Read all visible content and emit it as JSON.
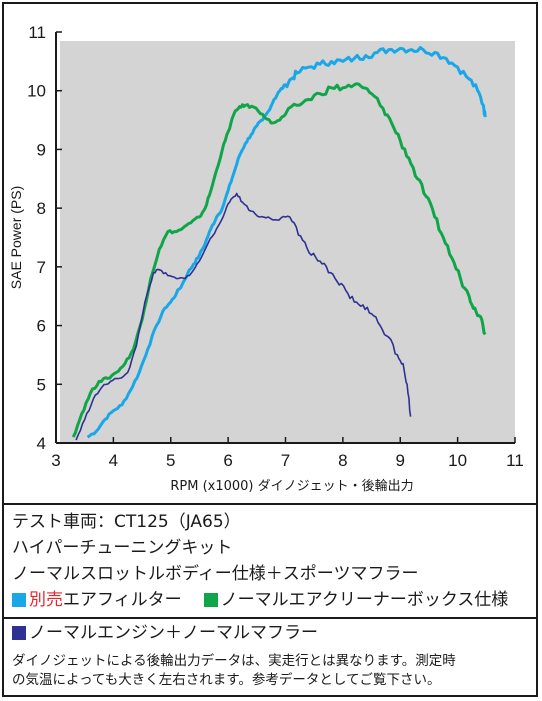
{
  "chart_data": {
    "type": "line",
    "ylabel": "SAE Power (PS)",
    "xlabel": "RPM (x1000) ダイノジェット・後輪出力",
    "xlim": [
      3,
      11
    ],
    "ylim": [
      4,
      11
    ],
    "xticks": [
      3,
      4,
      5,
      6,
      7,
      8,
      9,
      10,
      11
    ],
    "yticks": [
      4,
      5,
      6,
      7,
      8,
      9,
      10,
      11
    ],
    "grid": false,
    "series": [
      {
        "name": "別売エアフィルター",
        "color": "#1aa7e8",
        "points": [
          [
            3.55,
            4.1
          ],
          [
            3.7,
            4.2
          ],
          [
            3.85,
            4.4
          ],
          [
            4.0,
            4.55
          ],
          [
            4.15,
            4.65
          ],
          [
            4.3,
            4.9
          ],
          [
            4.45,
            5.2
          ],
          [
            4.6,
            5.6
          ],
          [
            4.75,
            6.0
          ],
          [
            4.9,
            6.3
          ],
          [
            5.0,
            6.4
          ],
          [
            5.1,
            6.55
          ],
          [
            5.2,
            6.7
          ],
          [
            5.3,
            6.9
          ],
          [
            5.4,
            7.05
          ],
          [
            5.5,
            7.2
          ],
          [
            5.6,
            7.4
          ],
          [
            5.7,
            7.65
          ],
          [
            5.8,
            7.85
          ],
          [
            5.9,
            8.0
          ],
          [
            6.0,
            8.3
          ],
          [
            6.1,
            8.6
          ],
          [
            6.2,
            8.9
          ],
          [
            6.3,
            9.1
          ],
          [
            6.4,
            9.25
          ],
          [
            6.5,
            9.4
          ],
          [
            6.6,
            9.5
          ],
          [
            6.7,
            9.65
          ],
          [
            6.8,
            9.85
          ],
          [
            6.9,
            10.0
          ],
          [
            7.0,
            10.1
          ],
          [
            7.1,
            10.2
          ],
          [
            7.2,
            10.3
          ],
          [
            7.4,
            10.4
          ],
          [
            7.6,
            10.45
          ],
          [
            7.8,
            10.5
          ],
          [
            8.0,
            10.5
          ],
          [
            8.2,
            10.55
          ],
          [
            8.4,
            10.6
          ],
          [
            8.6,
            10.65
          ],
          [
            8.8,
            10.7
          ],
          [
            9.0,
            10.72
          ],
          [
            9.2,
            10.7
          ],
          [
            9.4,
            10.7
          ],
          [
            9.6,
            10.65
          ],
          [
            9.8,
            10.55
          ],
          [
            10.0,
            10.4
          ],
          [
            10.2,
            10.2
          ],
          [
            10.35,
            10.0
          ],
          [
            10.45,
            9.75
          ],
          [
            10.48,
            9.55
          ]
        ]
      },
      {
        "name": "ノーマルエアクリーナーボックス仕様",
        "color": "#11a54a",
        "points": [
          [
            3.3,
            4.1
          ],
          [
            3.45,
            4.5
          ],
          [
            3.6,
            4.85
          ],
          [
            3.75,
            5.05
          ],
          [
            3.9,
            5.1
          ],
          [
            4.05,
            5.2
          ],
          [
            4.2,
            5.35
          ],
          [
            4.35,
            5.6
          ],
          [
            4.5,
            6.1
          ],
          [
            4.65,
            6.8
          ],
          [
            4.8,
            7.3
          ],
          [
            4.95,
            7.6
          ],
          [
            5.1,
            7.6
          ],
          [
            5.2,
            7.65
          ],
          [
            5.35,
            7.75
          ],
          [
            5.5,
            7.85
          ],
          [
            5.6,
            8.0
          ],
          [
            5.7,
            8.3
          ],
          [
            5.8,
            8.65
          ],
          [
            5.9,
            9.0
          ],
          [
            6.0,
            9.3
          ],
          [
            6.1,
            9.6
          ],
          [
            6.2,
            9.73
          ],
          [
            6.3,
            9.75
          ],
          [
            6.45,
            9.72
          ],
          [
            6.6,
            9.6
          ],
          [
            6.75,
            9.45
          ],
          [
            6.9,
            9.5
          ],
          [
            7.0,
            9.6
          ],
          [
            7.2,
            9.75
          ],
          [
            7.4,
            9.85
          ],
          [
            7.6,
            9.95
          ],
          [
            7.8,
            10.05
          ],
          [
            8.0,
            10.05
          ],
          [
            8.2,
            10.1
          ],
          [
            8.35,
            10.05
          ],
          [
            8.5,
            9.95
          ],
          [
            8.7,
            9.7
          ],
          [
            8.85,
            9.45
          ],
          [
            9.0,
            9.15
          ],
          [
            9.15,
            8.85
          ],
          [
            9.3,
            8.5
          ],
          [
            9.45,
            8.2
          ],
          [
            9.6,
            7.85
          ],
          [
            9.75,
            7.5
          ],
          [
            9.9,
            7.15
          ],
          [
            10.05,
            6.8
          ],
          [
            10.2,
            6.5
          ],
          [
            10.3,
            6.3
          ],
          [
            10.4,
            6.15
          ],
          [
            10.48,
            5.85
          ]
        ]
      },
      {
        "name": "ノーマルエンジン＋ノーマルマフラー",
        "color": "#2e3192",
        "points": [
          [
            3.35,
            4.05
          ],
          [
            3.5,
            4.4
          ],
          [
            3.65,
            4.75
          ],
          [
            3.8,
            4.95
          ],
          [
            3.95,
            5.05
          ],
          [
            4.1,
            5.1
          ],
          [
            4.25,
            5.2
          ],
          [
            4.4,
            5.65
          ],
          [
            4.55,
            6.4
          ],
          [
            4.7,
            6.9
          ],
          [
            4.8,
            6.95
          ],
          [
            4.95,
            6.85
          ],
          [
            5.1,
            6.8
          ],
          [
            5.25,
            6.8
          ],
          [
            5.4,
            6.95
          ],
          [
            5.5,
            7.1
          ],
          [
            5.65,
            7.4
          ],
          [
            5.8,
            7.65
          ],
          [
            5.95,
            7.95
          ],
          [
            6.05,
            8.15
          ],
          [
            6.15,
            8.25
          ],
          [
            6.25,
            8.1
          ],
          [
            6.4,
            7.95
          ],
          [
            6.55,
            7.85
          ],
          [
            6.7,
            7.85
          ],
          [
            6.85,
            7.8
          ],
          [
            7.0,
            7.85
          ],
          [
            7.15,
            7.75
          ],
          [
            7.3,
            7.45
          ],
          [
            7.45,
            7.2
          ],
          [
            7.6,
            7.1
          ],
          [
            7.75,
            6.9
          ],
          [
            7.9,
            6.75
          ],
          [
            8.05,
            6.6
          ],
          [
            8.2,
            6.4
          ],
          [
            8.35,
            6.35
          ],
          [
            8.5,
            6.2
          ],
          [
            8.65,
            6.0
          ],
          [
            8.8,
            5.8
          ],
          [
            8.95,
            5.5
          ],
          [
            9.05,
            5.35
          ],
          [
            9.12,
            5.0
          ],
          [
            9.18,
            4.45
          ]
        ]
      }
    ]
  },
  "info": {
    "line1": "テスト車両：CT125（JA65）",
    "line2": "ハイパーチューニングキット",
    "line3": "ノーマルスロットルボディー仕様＋スポーツマフラー",
    "legend_blue_red": "別売",
    "legend_blue_rest": "エアフィルター",
    "legend_green": "ノーマルエアクリーナーボックス仕様",
    "legend_navy": "ノーマルエンジン＋ノーマルマフラー",
    "note1": "ダイノジェットによる後輪出力データは、実走行とは異なります。測定時",
    "note2": "の気温によっても大きく左右されます。参考データとしてご覧下さい。",
    "colors": {
      "blue": "#1aa7e8",
      "green": "#11a54a",
      "navy": "#2e3192",
      "red": "#e8232a"
    }
  }
}
